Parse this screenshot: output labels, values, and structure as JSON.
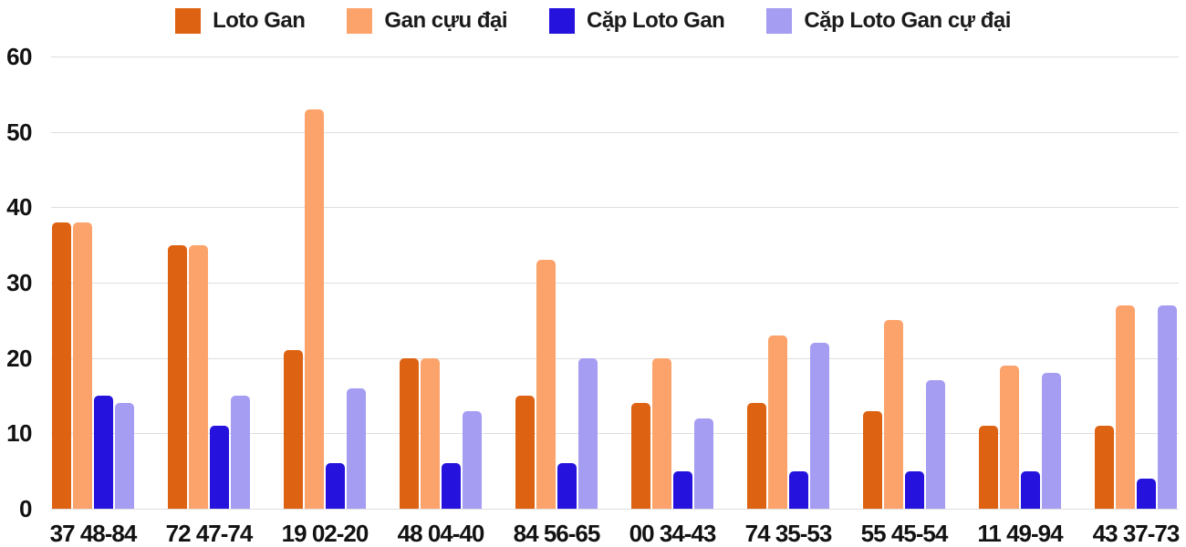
{
  "chart_data": {
    "type": "bar",
    "title": "",
    "xlabel": "",
    "ylabel": "",
    "categories": [
      "37 48-84",
      "72 47-74",
      "19 02-20",
      "48 04-40",
      "84 56-65",
      "00 34-43",
      "74 35-53",
      "55 45-54",
      "11 49-94",
      "43 37-73"
    ],
    "series": [
      {
        "name": "Loto Gan",
        "color": "#dd6211",
        "values": [
          38,
          35,
          21,
          20,
          15,
          14,
          14,
          13,
          11,
          11
        ]
      },
      {
        "name": "Gan cựu đại",
        "color": "#fca36c",
        "values": [
          38,
          35,
          53,
          20,
          33,
          20,
          23,
          25,
          19,
          27
        ]
      },
      {
        "name": "Cặp Loto Gan",
        "color": "#2512dd",
        "values": [
          15,
          11,
          6,
          6,
          6,
          5,
          5,
          5,
          5,
          4
        ]
      },
      {
        "name": "Cặp Loto Gan cự đại",
        "color": "#a49df2",
        "values": [
          14,
          15,
          16,
          13,
          20,
          12,
          22,
          17,
          18,
          27
        ]
      }
    ],
    "ylim": [
      0,
      60
    ],
    "yticks": [
      0,
      10,
      20,
      30,
      40,
      50,
      60
    ],
    "grid": "horizontal",
    "gridline_color": "#dedede",
    "legend_position": "top",
    "background": "#ffffff",
    "text_color": "#121212"
  }
}
